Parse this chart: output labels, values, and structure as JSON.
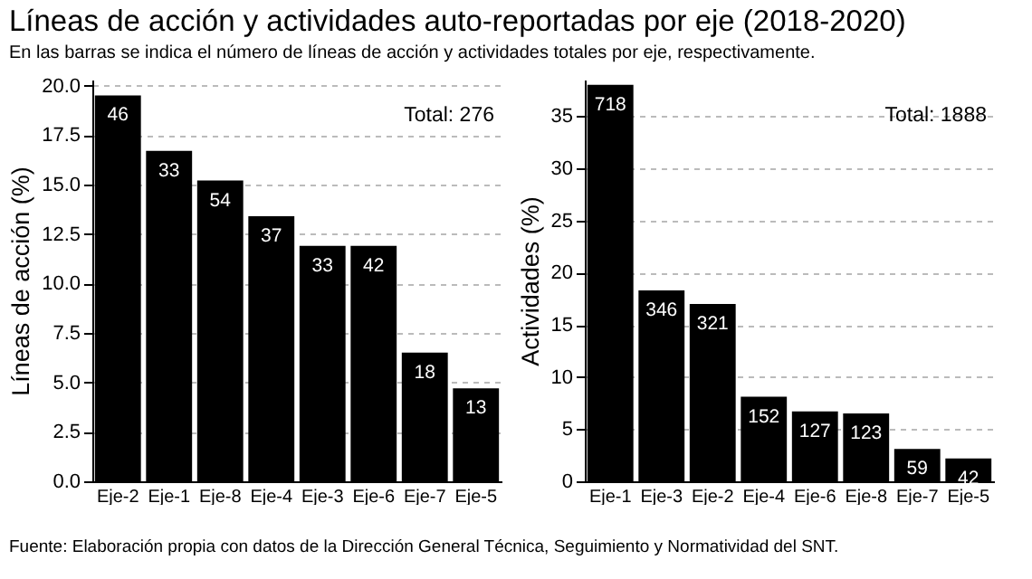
{
  "chart_data": [
    {
      "type": "bar",
      "title": "Líneas de acción y actividades auto-reportadas por eje (2018-2020)",
      "subtitle": "En las barras se indica el número de líneas de acción y actividades totales por eje, respectivamente.",
      "ylabel": "Líneas de acción (%)",
      "categories": [
        "Eje-2",
        "Eje-1",
        "Eje-8",
        "Eje-4",
        "Eje-3",
        "Eje-6",
        "Eje-7",
        "Eje-5"
      ],
      "values": [
        19.5,
        16.7,
        15.2,
        13.4,
        11.9,
        11.9,
        6.5,
        4.7
      ],
      "color": "#000000",
      "ylim": [
        0,
        20.3
      ],
      "yticks": [
        {
          "value": 0,
          "label": "0.0"
        },
        {
          "value": 2.5,
          "label": "2.5"
        },
        {
          "value": 5,
          "label": "5.0"
        },
        {
          "value": 7.5,
          "label": "7.5"
        },
        {
          "value": 10,
          "label": "10.0"
        },
        {
          "value": 12.5,
          "label": "12.5"
        },
        {
          "value": 15,
          "label": "15.0"
        },
        {
          "value": 17.5,
          "label": "17.5"
        },
        {
          "value": 20,
          "label": "20.0"
        }
      ],
      "grid": "y",
      "annotations": [
        "Total: 276",
        {
          "text": "46",
          "x": "Eje-2",
          "y": 19.5
        },
        {
          "text": "33",
          "x": "Eje-1",
          "y": 16.7
        },
        {
          "text": "54",
          "x": "Eje-8",
          "y": 15.2
        },
        {
          "text": "37",
          "x": "Eje-4",
          "y": 13.4
        },
        {
          "text": "33",
          "x": "Eje-3",
          "y": 11.9
        },
        {
          "text": "42",
          "x": "Eje-6",
          "y": 11.9
        },
        {
          "text": "18",
          "x": "Eje-7",
          "y": 6.5
        },
        {
          "text": "13",
          "x": "Eje-5",
          "y": 4.7
        }
      ]
    },
    {
      "type": "bar",
      "ylabel": "Actividades (%)",
      "categories": [
        "Eje-1",
        "Eje-3",
        "Eje-2",
        "Eje-4",
        "Eje-6",
        "Eje-8",
        "Eje-7",
        "Eje-5"
      ],
      "values": [
        38.0,
        18.3,
        17.0,
        8.1,
        6.7,
        6.5,
        3.1,
        2.2
      ],
      "color": "#000000",
      "ylim": [
        0,
        38.5
      ],
      "yticks": [
        0,
        5,
        10,
        15,
        20,
        25,
        30,
        35
      ],
      "grid": "y",
      "annotations": [
        "Total: 1888",
        "Fuente: Elaboración propia con datos de la Dirección General Técnica, Seguimiento y Normatividad del SNT.",
        {
          "text": "718",
          "x": "Eje-1",
          "y": 38.0
        },
        {
          "text": "346",
          "x": "Eje-3",
          "y": 18.3
        },
        {
          "text": "321",
          "x": "Eje-2",
          "y": 17.0
        },
        {
          "text": "152",
          "x": "Eje-4",
          "y": 8.1
        },
        {
          "text": "127",
          "x": "Eje-6",
          "y": 6.7
        },
        {
          "text": "123",
          "x": "Eje-8",
          "y": 6.5
        },
        {
          "text": "59",
          "x": "Eje-7",
          "y": 3.1
        },
        {
          "text": "42",
          "x": "Eje-5",
          "y": 2.2
        }
      ]
    }
  ]
}
